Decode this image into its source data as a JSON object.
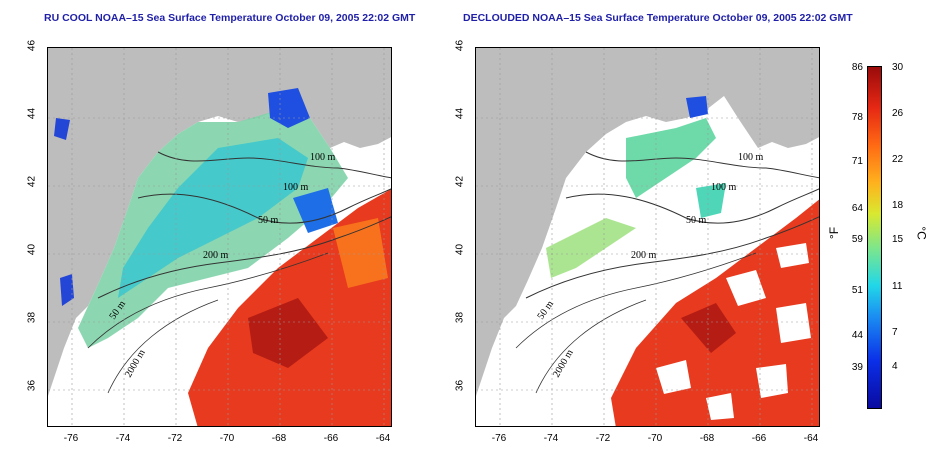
{
  "titles": {
    "left": "RU COOL NOAA–15 Sea Surface Temperature October 09, 2005 22:02 GMT",
    "right": "DECLOUDED NOAA–15 Sea Surface Temperature October 09, 2005 22:02 GMT"
  },
  "axes": {
    "lon_ticks": [
      "-76",
      "-74",
      "-72",
      "-70",
      "-68",
      "-66",
      "-64"
    ],
    "lat_ticks": [
      "46",
      "44",
      "42",
      "40",
      "38",
      "36"
    ]
  },
  "contour_labels": [
    "100 m",
    "100 m",
    "50 m",
    "200 m",
    "50 m",
    "2000 m"
  ],
  "colorbar": {
    "fahrenheit_unit": "°F",
    "celsius_unit": "°C",
    "fahrenheit_ticks": [
      "86",
      "78",
      "71",
      "64",
      "59",
      "51",
      "44",
      "39"
    ],
    "celsius_ticks": [
      "30",
      "26",
      "22",
      "18",
      "15",
      "11",
      "7",
      "4"
    ]
  },
  "colors": {
    "land": "#bdbdbd",
    "title": "#1f1fa8",
    "warm": "#e83a1e",
    "cool": "#2a6ef0"
  }
}
